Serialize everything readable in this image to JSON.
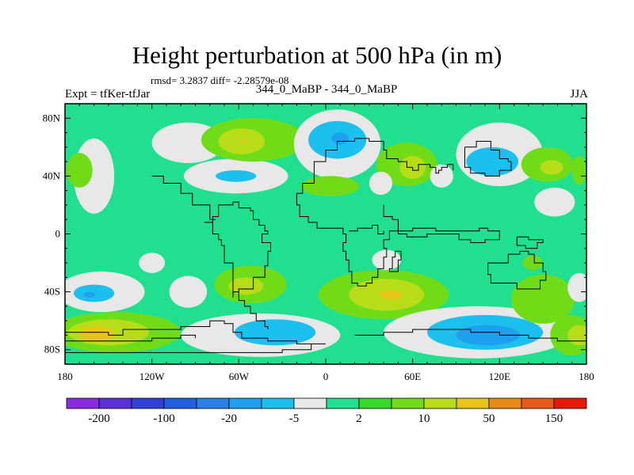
{
  "title": "Height perturbation at 500 hPa (in m)",
  "stats": "rmsd= 3.2837  diff= -2.28579e-08",
  "subtitle": "344_0_MaBP - 344_0_MaBP",
  "left_string": "Expt = tfKer-tfJar",
  "right_string": "JJA",
  "chart_data": {
    "type": "heatmap",
    "title": "Height perturbation at 500 hPa (in m)",
    "xlim": [
      -180,
      180
    ],
    "ylim": [
      -90,
      90
    ],
    "x_ticks": [
      -180,
      -120,
      -60,
      0,
      60,
      120,
      180
    ],
    "x_tick_labels": [
      "180",
      "120W",
      "60W",
      "0",
      "60E",
      "120E",
      "180"
    ],
    "y_ticks": [
      80,
      40,
      0,
      -40,
      -80
    ],
    "y_tick_labels": [
      "80N",
      "40N",
      "0",
      "40S",
      "80S"
    ],
    "colorbar": {
      "levels": [
        -200,
        -150,
        -100,
        -50,
        -20,
        -10,
        -5,
        -2,
        2,
        5,
        10,
        20,
        50,
        100,
        150,
        200
      ],
      "labels": [
        "-200",
        "-100",
        "-20",
        "-5",
        "2",
        "10",
        "50",
        "150"
      ],
      "colors": [
        "#8a2be2",
        "#5a30d8",
        "#3040d8",
        "#2060e0",
        "#2a80e6",
        "#1fa0ee",
        "#1bc0ee",
        "#e8e8e8",
        "#20e090",
        "#3ad82a",
        "#70dc18",
        "#b8dc18",
        "#e8c418",
        "#e88a18",
        "#e85818",
        "#e81808"
      ]
    },
    "regions": [
      {
        "level": -5,
        "lon": -95,
        "lat": 63,
        "rlon": 25,
        "rlat": 14
      },
      {
        "level": -5,
        "lon": -160,
        "lat": 40,
        "rlon": 14,
        "rlat": 26
      },
      {
        "level": 5,
        "lon": -170,
        "lat": 44,
        "rlon": 9,
        "rlat": 12
      },
      {
        "level": -5,
        "lon": -62,
        "lat": 40,
        "rlon": 36,
        "rlat": 12
      },
      {
        "level": -10,
        "lon": -62,
        "lat": 40,
        "rlon": 14,
        "rlat": 4
      },
      {
        "level": 5,
        "lon": -50,
        "lat": 65,
        "rlon": 36,
        "rlat": 15
      },
      {
        "level": 10,
        "lon": -58,
        "lat": 64,
        "rlon": 16,
        "rlat": 9
      },
      {
        "level": 20,
        "lon": -57,
        "lat": 64,
        "rlon": 2,
        "rlat": 1
      },
      {
        "level": -5,
        "lon": 8,
        "lat": 62,
        "rlon": 30,
        "rlat": 24
      },
      {
        "level": -10,
        "lon": 8,
        "lat": 65,
        "rlon": 20,
        "rlat": 13
      },
      {
        "level": -20,
        "lon": 10,
        "lat": 66,
        "rlon": 6,
        "rlat": 4
      },
      {
        "level": 5,
        "lon": 3,
        "lat": 33,
        "rlon": 20,
        "rlat": 7
      },
      {
        "level": 5,
        "lon": 56,
        "lat": 48,
        "rlon": 21,
        "rlat": 15
      },
      {
        "level": 10,
        "lon": 60,
        "lat": 46,
        "rlon": 9,
        "rlat": 8
      },
      {
        "level": -5,
        "lon": 80,
        "lat": 40,
        "rlon": 8,
        "rlat": 8
      },
      {
        "level": -5,
        "lon": 120,
        "lat": 55,
        "rlon": 30,
        "rlat": 22
      },
      {
        "level": -10,
        "lon": 115,
        "lat": 50,
        "rlon": 18,
        "rlat": 10
      },
      {
        "level": 5,
        "lon": 153,
        "lat": 48,
        "rlon": 18,
        "rlat": 12
      },
      {
        "level": 10,
        "lon": 156,
        "lat": 46,
        "rlon": 8,
        "rlat": 5
      },
      {
        "level": -5,
        "lon": 158,
        "lat": 22,
        "rlon": 14,
        "rlat": 10
      },
      {
        "level": 5,
        "lon": 175,
        "lat": 44,
        "rlon": 5,
        "rlat": 10
      },
      {
        "level": -5,
        "lon": 38,
        "lat": 35,
        "rlon": 8,
        "rlat": 8
      },
      {
        "level": 5,
        "lon": 143,
        "lat": -20,
        "rlon": 7,
        "rlat": 5
      },
      {
        "level": -5,
        "lon": -155,
        "lat": -40,
        "rlon": 30,
        "rlat": 14
      },
      {
        "level": -10,
        "lon": -160,
        "lat": -41,
        "rlon": 14,
        "rlat": 6
      },
      {
        "level": -20,
        "lon": -163,
        "lat": -42,
        "rlon": 4,
        "rlat": 2
      },
      {
        "level": -5,
        "lon": -120,
        "lat": -20,
        "rlon": 9,
        "rlat": 7
      },
      {
        "level": -5,
        "lon": -95,
        "lat": -40,
        "rlon": 13,
        "rlat": 11
      },
      {
        "level": 5,
        "lon": -145,
        "lat": -68,
        "rlon": 45,
        "rlat": 14
      },
      {
        "level": 10,
        "lon": -150,
        "lat": -68,
        "rlon": 28,
        "rlat": 9
      },
      {
        "level": 20,
        "lon": -158,
        "lat": -69,
        "rlon": 12,
        "rlat": 5
      },
      {
        "level": 5,
        "lon": -52,
        "lat": -35,
        "rlon": 25,
        "rlat": 13
      },
      {
        "level": 10,
        "lon": -55,
        "lat": -36,
        "rlon": 12,
        "rlat": 6
      },
      {
        "level": -5,
        "lon": -45,
        "lat": -70,
        "rlon": 55,
        "rlat": 15
      },
      {
        "level": -10,
        "lon": -35,
        "lat": -68,
        "rlon": 28,
        "rlat": 9
      },
      {
        "level": -5,
        "lon": 42,
        "lat": -18,
        "rlon": 10,
        "rlat": 7
      },
      {
        "level": 5,
        "lon": 40,
        "lat": -42,
        "rlon": 45,
        "rlat": 17
      },
      {
        "level": 10,
        "lon": 42,
        "lat": -42,
        "rlon": 26,
        "rlat": 11
      },
      {
        "level": 20,
        "lon": 45,
        "lat": -42,
        "rlon": 8,
        "rlat": 3
      },
      {
        "level": -5,
        "lon": 105,
        "lat": -68,
        "rlon": 65,
        "rlat": 18
      },
      {
        "level": -10,
        "lon": 110,
        "lat": -68,
        "rlon": 40,
        "rlat": 12
      },
      {
        "level": -20,
        "lon": 112,
        "lat": -70,
        "rlon": 22,
        "rlat": 7
      },
      {
        "level": 5,
        "lon": 150,
        "lat": -45,
        "rlon": 22,
        "rlat": 17
      },
      {
        "level": 5,
        "lon": 170,
        "lat": -70,
        "rlon": 15,
        "rlat": 14
      },
      {
        "level": 10,
        "lon": 175,
        "lat": -70,
        "rlon": 8,
        "rlat": 7
      },
      {
        "level": -5,
        "lon": 175,
        "lat": -37,
        "rlon": 8,
        "rlat": 10
      }
    ],
    "coastlines": [
      [
        [
          -120,
          40
        ],
        [
          -112,
          40
        ],
        [
          -112,
          35
        ],
        [
          -100,
          35
        ],
        [
          -100,
          28
        ],
        [
          -92,
          28
        ],
        [
          -92,
          20
        ],
        [
          -84,
          20
        ],
        [
          -80,
          10
        ],
        [
          -76,
          10
        ],
        [
          -78,
          0
        ],
        [
          -74,
          -4
        ],
        [
          -72,
          -8
        ],
        [
          -70,
          -20
        ],
        [
          -64,
          -30
        ],
        [
          -64,
          -40
        ],
        [
          -60,
          -46
        ],
        [
          -56,
          -50
        ],
        [
          -52,
          -55
        ],
        [
          -48,
          -60
        ],
        [
          -42,
          -64
        ],
        [
          -40,
          -66
        ]
      ],
      [
        [
          -84,
          8
        ],
        [
          -78,
          12
        ],
        [
          -74,
          20
        ],
        [
          -64,
          22
        ],
        [
          -60,
          18
        ],
        [
          -52,
          16
        ],
        [
          -50,
          10
        ],
        [
          -46,
          6
        ],
        [
          -42,
          2
        ],
        [
          -40,
          0
        ],
        [
          -44,
          -6
        ],
        [
          -38,
          -12
        ],
        [
          -40,
          -22
        ],
        [
          -42,
          -30
        ],
        [
          -50,
          -38
        ],
        [
          -60,
          -40
        ],
        [
          -64,
          -44
        ]
      ],
      [
        [
          -8,
          35
        ],
        [
          -8,
          50
        ],
        [
          0,
          58
        ],
        [
          8,
          64
        ],
        [
          20,
          66
        ],
        [
          30,
          64
        ],
        [
          40,
          58
        ],
        [
          42,
          52
        ],
        [
          50,
          50
        ],
        [
          56,
          46
        ],
        [
          60,
          44
        ],
        [
          64,
          48
        ],
        [
          72,
          46
        ],
        [
          76,
          42
        ],
        [
          78,
          44
        ],
        [
          80,
          46
        ],
        [
          84,
          48
        ],
        [
          88,
          44
        ]
      ],
      [
        [
          -8,
          35
        ],
        [
          -16,
          28
        ],
        [
          -20,
          20
        ],
        [
          -18,
          12
        ],
        [
          -12,
          8
        ],
        [
          -6,
          4
        ],
        [
          0,
          4
        ],
        [
          8,
          4
        ],
        [
          12,
          0
        ],
        [
          14,
          -6
        ],
        [
          12,
          -12
        ],
        [
          14,
          -18
        ],
        [
          16,
          -26
        ],
        [
          18,
          -34
        ],
        [
          22,
          -36
        ],
        [
          28,
          -34
        ],
        [
          32,
          -30
        ],
        [
          36,
          -24
        ],
        [
          40,
          -16
        ],
        [
          42,
          -10
        ],
        [
          40,
          -4
        ],
        [
          44,
          2
        ],
        [
          50,
          10
        ],
        [
          46,
          12
        ],
        [
          40,
          20
        ]
      ],
      [
        [
          16,
          2
        ],
        [
          22,
          4
        ],
        [
          32,
          6
        ],
        [
          36,
          0
        ],
        [
          40,
          2
        ]
      ],
      [
        [
          48,
          -12
        ],
        [
          52,
          -18
        ],
        [
          50,
          -26
        ],
        [
          44,
          -24
        ],
        [
          46,
          -16
        ],
        [
          48,
          -12
        ]
      ],
      [
        [
          50,
          2
        ],
        [
          60,
          4
        ],
        [
          76,
          2
        ],
        [
          90,
          2
        ],
        [
          106,
          4
        ],
        [
          112,
          2
        ],
        [
          118,
          2
        ],
        [
          120,
          -4
        ],
        [
          110,
          -6
        ],
        [
          100,
          -4
        ],
        [
          92,
          0
        ],
        [
          70,
          -2
        ],
        [
          56,
          0
        ],
        [
          50,
          2
        ]
      ],
      [
        [
          112,
          -20
        ],
        [
          120,
          -20
        ],
        [
          126,
          -14
        ],
        [
          134,
          -12
        ],
        [
          140,
          -14
        ],
        [
          144,
          -20
        ],
        [
          150,
          -26
        ],
        [
          152,
          -32
        ],
        [
          148,
          -38
        ],
        [
          140,
          -38
        ],
        [
          132,
          -34
        ],
        [
          124,
          -34
        ],
        [
          116,
          -34
        ],
        [
          114,
          -28
        ],
        [
          112,
          -20
        ]
      ],
      [
        [
          -180,
          -68
        ],
        [
          -160,
          -68
        ],
        [
          -150,
          -70
        ],
        [
          -140,
          -66
        ],
        [
          -120,
          -66
        ],
        [
          -100,
          -64
        ],
        [
          -80,
          -60
        ],
        [
          -70,
          -62
        ],
        [
          -64,
          -68
        ],
        [
          -58,
          -72
        ],
        [
          -40,
          -74
        ],
        [
          -20,
          -76
        ],
        [
          0,
          -76
        ],
        [
          -10,
          -80
        ],
        [
          -30,
          -82
        ],
        [
          -60,
          -82
        ],
        [
          -100,
          -82
        ],
        [
          -140,
          -82
        ],
        [
          -180,
          -82
        ]
      ],
      [
        [
          20,
          -70
        ],
        [
          40,
          -68
        ],
        [
          60,
          -66
        ],
        [
          80,
          -66
        ],
        [
          100,
          -68
        ],
        [
          120,
          -70
        ],
        [
          140,
          -72
        ],
        [
          160,
          -74
        ],
        [
          180,
          -76
        ]
      ],
      [
        [
          96,
          60
        ],
        [
          104,
          64
        ],
        [
          114,
          58
        ],
        [
          120,
          52
        ],
        [
          126,
          50
        ],
        [
          128,
          44
        ],
        [
          120,
          40
        ],
        [
          110,
          42
        ],
        [
          100,
          46
        ],
        [
          96,
          52
        ],
        [
          96,
          60
        ]
      ],
      [
        [
          -180,
          -74
        ],
        [
          -170,
          -74
        ],
        [
          -150,
          -74
        ],
        [
          -120,
          -72
        ],
        [
          -100,
          -70
        ],
        [
          -90,
          -72
        ]
      ],
      [
        [
          132,
          -2
        ],
        [
          140,
          -4
        ],
        [
          150,
          -6
        ],
        [
          146,
          -10
        ],
        [
          138,
          -8
        ],
        [
          132,
          -2
        ]
      ]
    ]
  }
}
